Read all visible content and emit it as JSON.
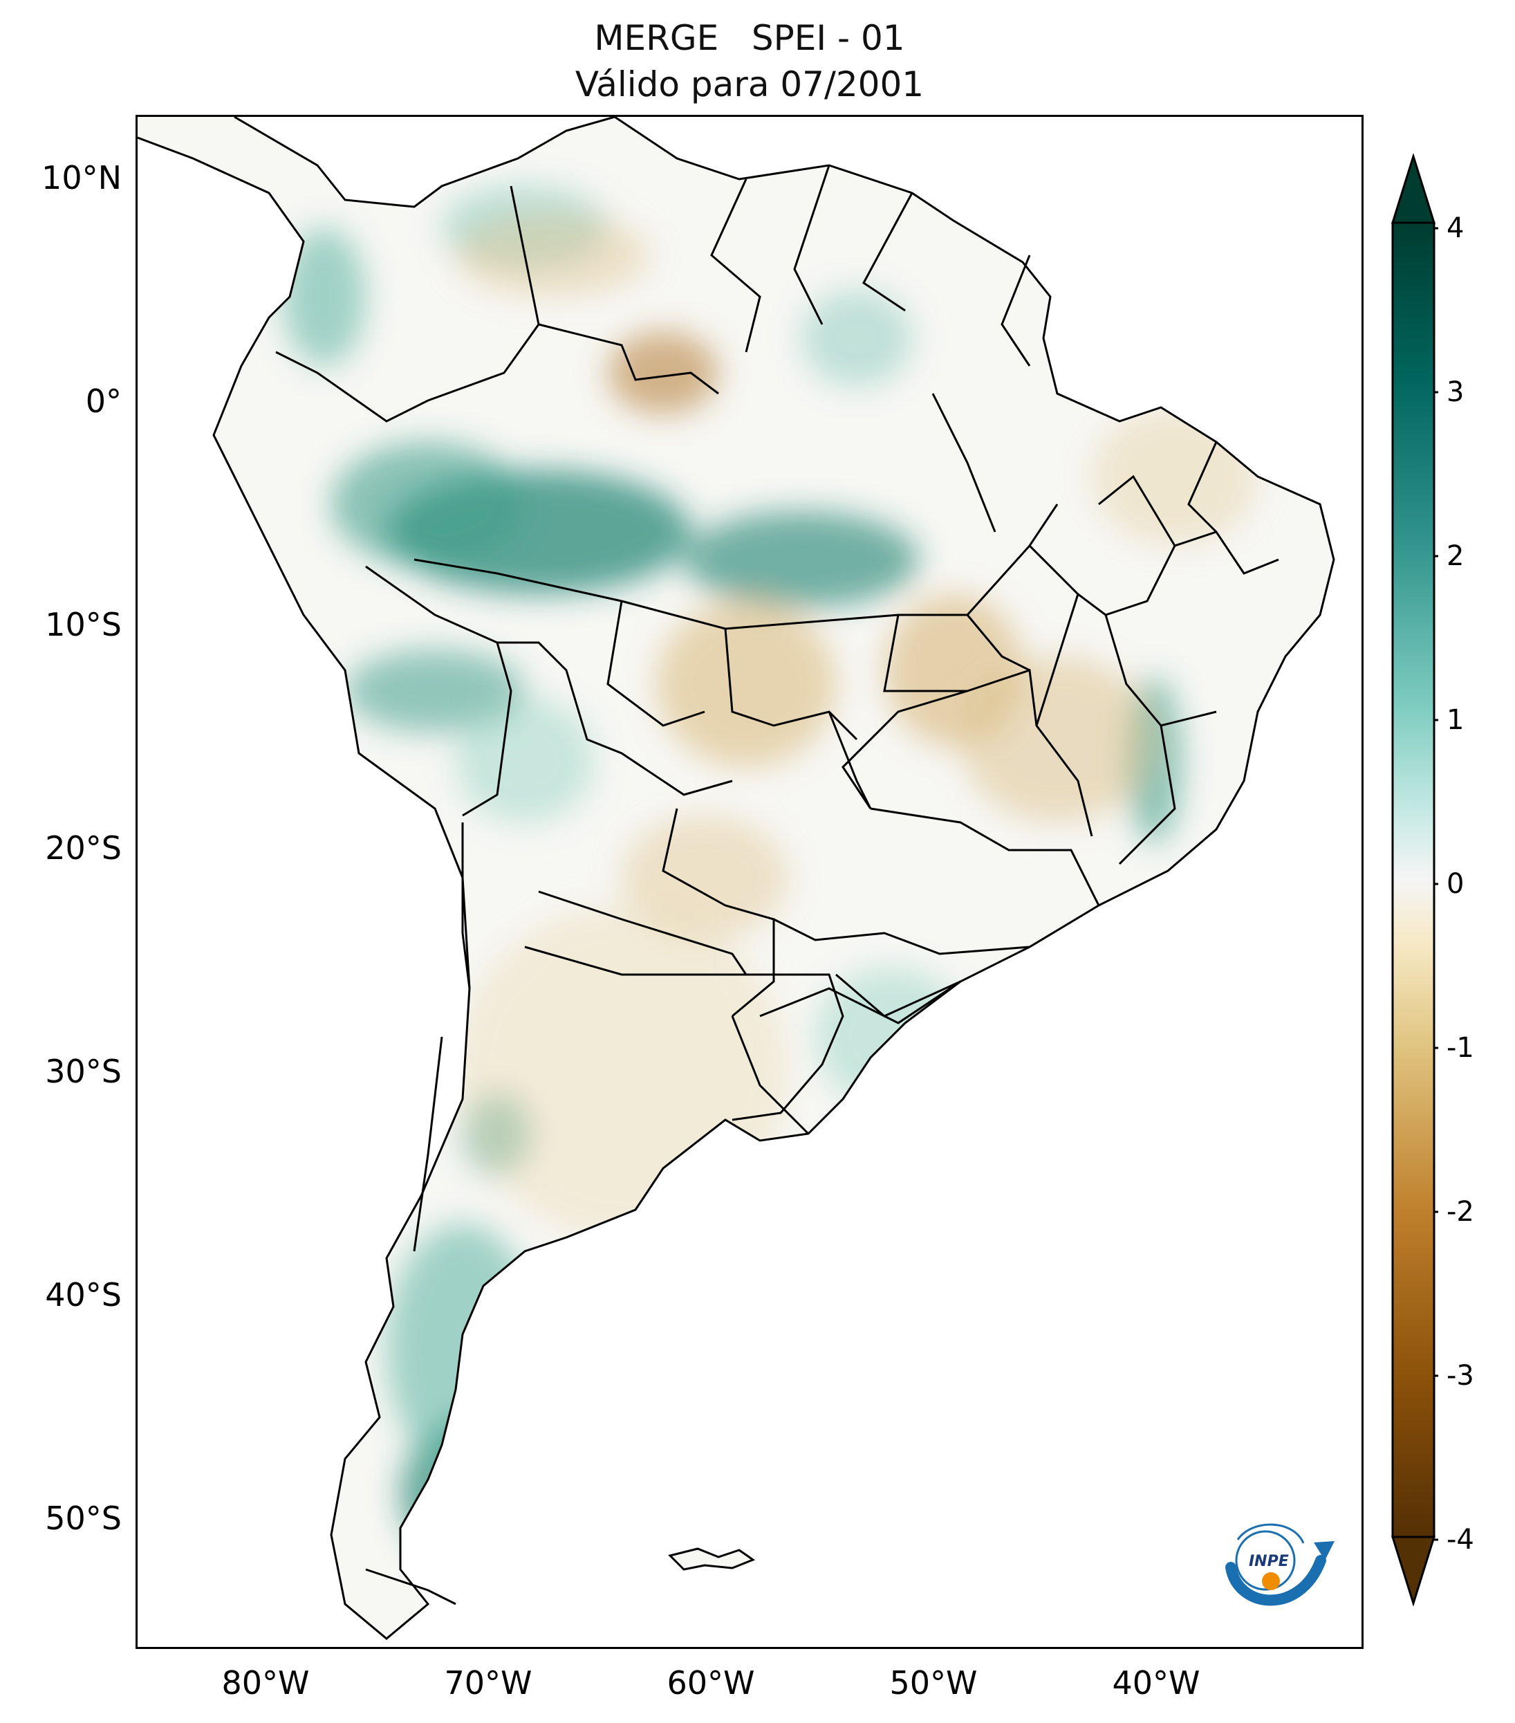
{
  "title": {
    "line1": "MERGE   SPEI - 01",
    "line2": "Válido para 07/2001"
  },
  "map": {
    "region": "South America",
    "variable": "SPEI - 01",
    "lat_ticks": [
      "10°N",
      "0°",
      "10°S",
      "20°S",
      "30°S",
      "40°S",
      "50°S"
    ],
    "lon_ticks": [
      "80°W",
      "70°W",
      "60°W",
      "50°W",
      "40°W"
    ],
    "lon_range": [
      -85,
      -30
    ],
    "lat_range": [
      -56,
      13
    ],
    "boundaries": "country and state borders in black"
  },
  "colorbar": {
    "ticks": [
      "4",
      "3",
      "2",
      "1",
      "0",
      "-1",
      "-2",
      "-3",
      "-4"
    ],
    "range": [
      -4,
      4
    ],
    "extend": "both",
    "colormap": "brown-white-teal (BrBG)",
    "colors": {
      "max": "#003c30",
      "high": "#35978f",
      "mid_high": "#c7eae5",
      "zero": "#f5f5f5",
      "mid_low": "#f6e8c3",
      "low": "#bf812d",
      "min": "#543005"
    }
  },
  "logo": {
    "text": "INPE"
  }
}
